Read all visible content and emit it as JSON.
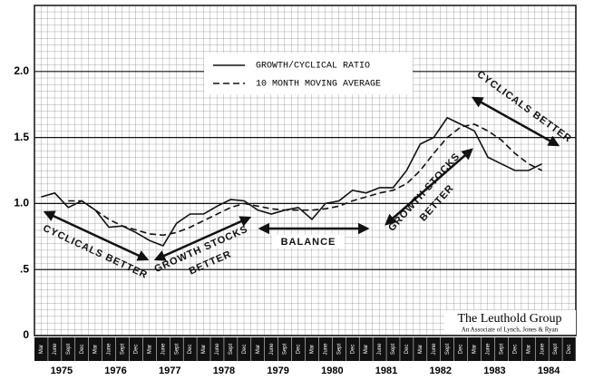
{
  "chart_data": {
    "type": "line",
    "categories": [
      "Mar",
      "June",
      "Sept",
      "Dec",
      "Mar",
      "June",
      "Sept",
      "Dec",
      "Mar",
      "June",
      "Sept",
      "Dec",
      "Mar",
      "June",
      "Sept",
      "Dec",
      "Mar",
      "June",
      "Sept",
      "Dec",
      "Mar",
      "June",
      "Sept",
      "Dec",
      "Mar",
      "June",
      "Sept",
      "Dec",
      "Mar",
      "June",
      "Sept",
      "Dec",
      "Mar",
      "June",
      "Sept",
      "Dec",
      "Mar",
      "June",
      "Sept",
      "Dec"
    ],
    "years": [
      "1975",
      "1976",
      "1977",
      "1978",
      "1979",
      "1980",
      "1981",
      "1982",
      "1983",
      "1984"
    ],
    "series": [
      {
        "name": "GROWTH/CYCLICAL RATIO",
        "color": "#111111",
        "dash": false,
        "values": [
          1.05,
          1.08,
          0.97,
          1.02,
          0.95,
          0.82,
          0.83,
          0.78,
          0.72,
          0.68,
          0.85,
          0.92,
          0.92,
          0.98,
          1.03,
          1.02,
          0.95,
          0.92,
          0.95,
          0.97,
          0.88,
          1.0,
          1.02,
          1.1,
          1.08,
          1.12,
          1.12,
          1.25,
          1.45,
          1.5,
          1.65,
          1.6,
          1.55,
          1.35,
          1.3,
          1.25,
          1.25,
          1.3,
          null,
          null
        ]
      },
      {
        "name": "10 MONTH MOVING AVERAGE",
        "color": "#111111",
        "dash": true,
        "values": [
          null,
          null,
          1.02,
          1.02,
          0.95,
          0.88,
          0.83,
          0.8,
          0.77,
          0.76,
          0.78,
          0.82,
          0.87,
          0.92,
          0.97,
          1.0,
          0.98,
          0.96,
          0.95,
          0.95,
          0.95,
          0.96,
          0.98,
          1.02,
          1.05,
          1.08,
          1.1,
          1.15,
          1.25,
          1.38,
          1.5,
          1.58,
          1.6,
          1.55,
          1.48,
          1.38,
          1.3,
          1.25,
          null,
          null
        ]
      }
    ],
    "ylim": [
      0,
      2.5
    ],
    "yticks": [
      0,
      {
        "value": 0.5,
        "label": ".5"
      },
      {
        "value": 1,
        "label": "1.0"
      },
      1.5,
      {
        "value": 2,
        "label": "2.0"
      }
    ],
    "grid": true,
    "annotations": [
      "CYCLICALS BETTER",
      "GROWTH STOCKS",
      "BETTER",
      "BALANCE",
      "GROWTH STOCKS",
      "BETTER",
      "CYCLICALS BETTER"
    ],
    "source": "The Leuthold Group",
    "source_note": "An Associate of Lynch, Jones & Ryan"
  }
}
